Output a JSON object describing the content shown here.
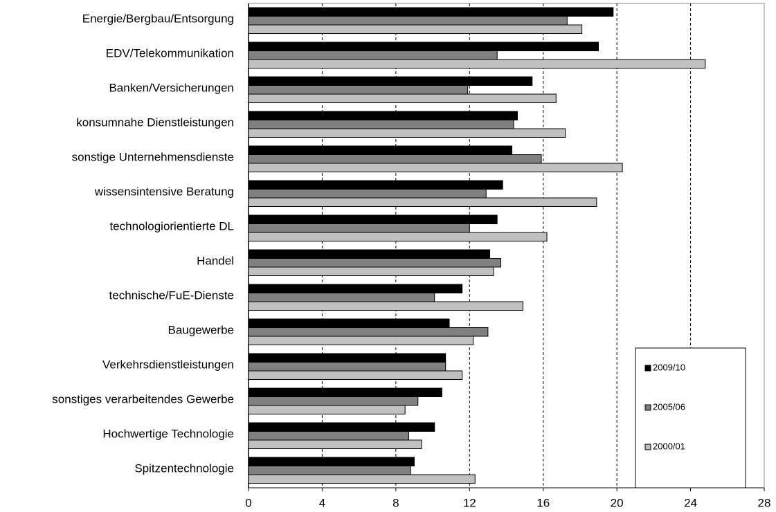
{
  "chart_data": {
    "type": "hbar",
    "categories": [
      "Energie/Bergbau/Entsorgung",
      "EDV/Telekommunikation",
      "Banken/Versicherungen",
      "konsumnahe Dienstleistungen",
      "sonstige Unternehmensdienste",
      "wissensintensive Beratung",
      "technologiorientierte DL",
      "Handel",
      "technische/FuE-Dienste",
      "Baugewerbe",
      "Verkehrsdienstleistungen",
      "sonstiges verarbeitendes Gewerbe",
      "Hochwertige Technologie",
      "Spitzentechnologie"
    ],
    "series": [
      {
        "name": "2009/10",
        "color": "#000000",
        "values": [
          19.8,
          19.0,
          15.4,
          14.6,
          14.3,
          13.8,
          13.5,
          13.1,
          11.6,
          10.9,
          10.7,
          10.5,
          10.1,
          9.0
        ]
      },
      {
        "name": "2005/06",
        "color": "#808080",
        "values": [
          17.3,
          13.5,
          11.9,
          14.4,
          15.9,
          12.9,
          12.0,
          13.7,
          10.1,
          13.0,
          10.7,
          9.2,
          8.7,
          8.8
        ]
      },
      {
        "name": "2000/01",
        "color": "#c0c0c0",
        "values": [
          18.1,
          24.8,
          16.7,
          17.2,
          20.3,
          18.9,
          16.2,
          13.3,
          14.9,
          12.2,
          11.6,
          8.5,
          9.4,
          12.3
        ]
      }
    ],
    "xlim": [
      0,
      28
    ],
    "xticks": [
      0,
      4,
      8,
      12,
      16,
      20,
      24,
      28
    ],
    "grid": true
  }
}
